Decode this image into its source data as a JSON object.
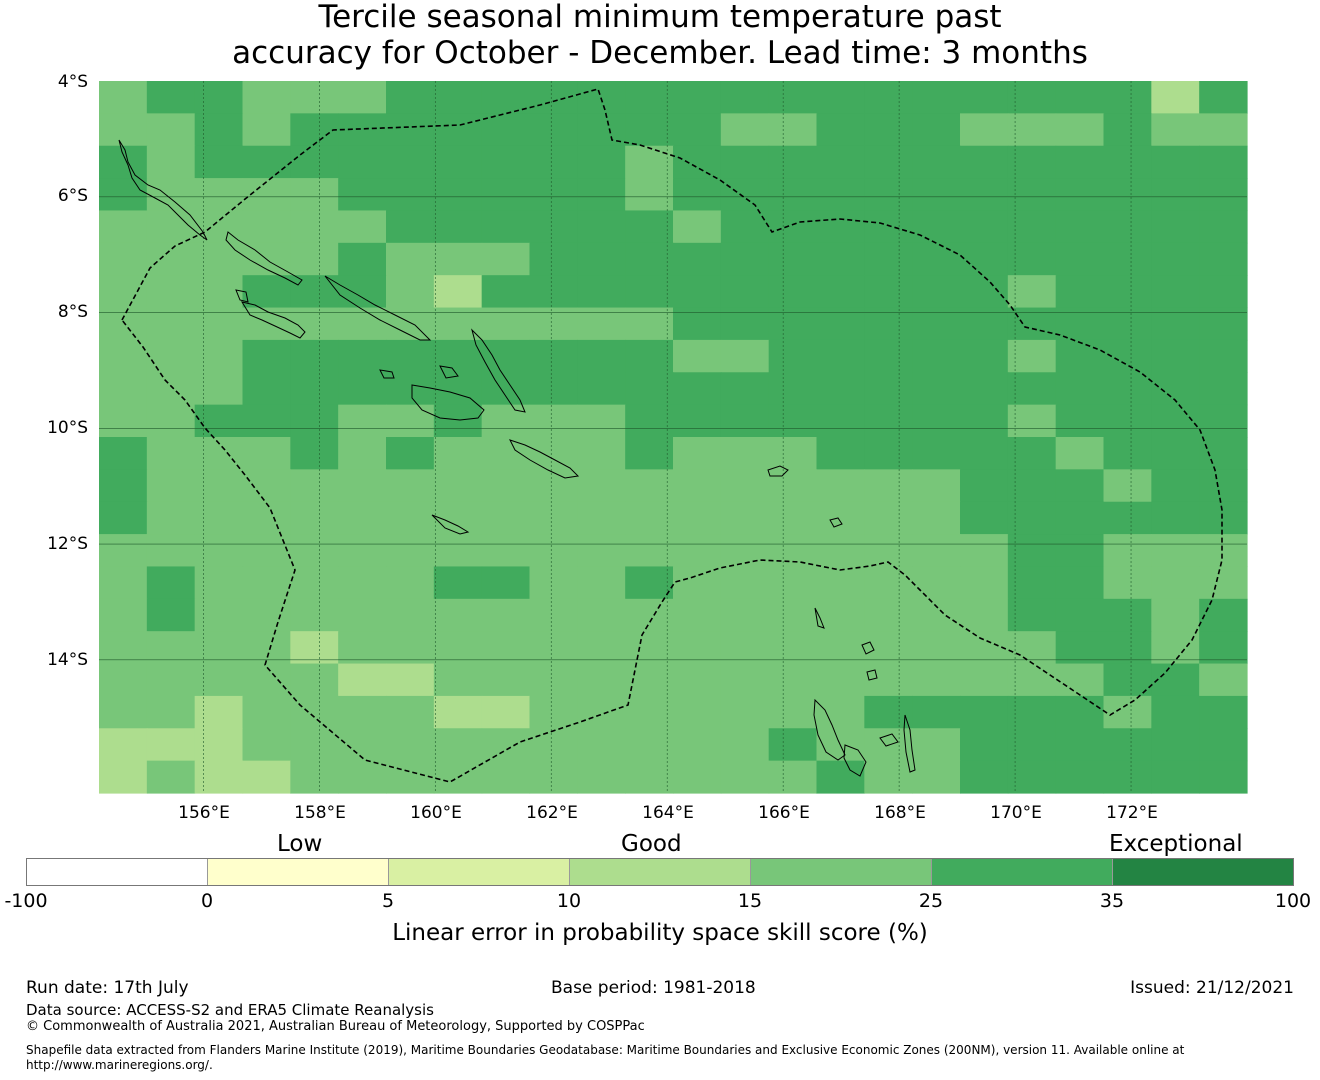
{
  "title_line1": "Tercile seasonal minimum temperature past",
  "title_line2": "accuracy for October - December. Lead time: 3 months",
  "map": {
    "lat_labels": [
      "4°S",
      "6°S",
      "8°S",
      "10°S",
      "12°S",
      "14°S"
    ],
    "lon_labels": [
      "156°E",
      "158°E",
      "160°E",
      "162°E",
      "164°E",
      "166°E",
      "168°E",
      "170°E",
      "172°E"
    ],
    "lat_range": [
      -16.3,
      -4.0
    ],
    "lon_range": [
      154.2,
      174.0
    ],
    "gridlines": true,
    "cell_size_deg": 0.833,
    "grid_values": [
      [
        4,
        5,
        5,
        4,
        4,
        4,
        5,
        5,
        5,
        5,
        5,
        5,
        5,
        5,
        5,
        5,
        5,
        5,
        5,
        5,
        5,
        5,
        3,
        5
      ],
      [
        4,
        4,
        5,
        4,
        5,
        5,
        5,
        5,
        5,
        5,
        5,
        5,
        5,
        4,
        4,
        5,
        5,
        5,
        4,
        4,
        4,
        5,
        4,
        4
      ],
      [
        5,
        4,
        5,
        5,
        5,
        5,
        5,
        5,
        5,
        5,
        5,
        4,
        5,
        5,
        5,
        5,
        5,
        5,
        5,
        5,
        5,
        5,
        5,
        5
      ],
      [
        5,
        4,
        4,
        4,
        4,
        5,
        5,
        5,
        5,
        5,
        5,
        4,
        5,
        5,
        5,
        5,
        5,
        5,
        5,
        5,
        5,
        5,
        5,
        5
      ],
      [
        4,
        4,
        4,
        4,
        4,
        4,
        5,
        5,
        5,
        5,
        5,
        5,
        4,
        5,
        5,
        5,
        5,
        5,
        5,
        5,
        5,
        5,
        5,
        5
      ],
      [
        4,
        4,
        4,
        4,
        4,
        5,
        4,
        4,
        4,
        5,
        5,
        5,
        5,
        5,
        5,
        5,
        5,
        5,
        5,
        5,
        5,
        5,
        5,
        5
      ],
      [
        4,
        4,
        4,
        5,
        5,
        5,
        4,
        3,
        5,
        5,
        5,
        5,
        5,
        5,
        5,
        5,
        5,
        5,
        5,
        4,
        5,
        5,
        5,
        5
      ],
      [
        4,
        4,
        4,
        4,
        4,
        4,
        4,
        4,
        4,
        4,
        4,
        4,
        5,
        5,
        5,
        5,
        5,
        5,
        5,
        5,
        5,
        5,
        5,
        5
      ],
      [
        4,
        4,
        4,
        5,
        5,
        5,
        5,
        5,
        5,
        5,
        5,
        5,
        4,
        4,
        5,
        5,
        5,
        5,
        5,
        4,
        5,
        5,
        5,
        5
      ],
      [
        4,
        4,
        4,
        5,
        5,
        5,
        5,
        5,
        5,
        5,
        5,
        5,
        5,
        5,
        5,
        5,
        5,
        5,
        5,
        5,
        5,
        5,
        5,
        5
      ],
      [
        4,
        4,
        5,
        5,
        5,
        4,
        4,
        5,
        4,
        4,
        4,
        5,
        5,
        5,
        5,
        5,
        5,
        5,
        5,
        4,
        5,
        5,
        5,
        5
      ],
      [
        5,
        4,
        4,
        4,
        5,
        4,
        5,
        4,
        4,
        4,
        4,
        5,
        4,
        4,
        4,
        5,
        5,
        5,
        5,
        5,
        4,
        5,
        5,
        5
      ],
      [
        5,
        4,
        4,
        4,
        4,
        4,
        4,
        4,
        4,
        4,
        4,
        4,
        4,
        4,
        4,
        4,
        4,
        4,
        5,
        5,
        5,
        4,
        5,
        5
      ],
      [
        5,
        4,
        4,
        4,
        4,
        4,
        4,
        4,
        4,
        4,
        4,
        4,
        4,
        4,
        4,
        4,
        4,
        4,
        5,
        5,
        5,
        5,
        5,
        5
      ],
      [
        4,
        4,
        4,
        4,
        4,
        4,
        4,
        4,
        4,
        4,
        4,
        4,
        4,
        4,
        4,
        4,
        4,
        4,
        4,
        5,
        5,
        4,
        4,
        4
      ],
      [
        4,
        5,
        4,
        4,
        4,
        4,
        4,
        5,
        5,
        4,
        4,
        5,
        4,
        4,
        4,
        4,
        4,
        4,
        4,
        5,
        5,
        4,
        4,
        4
      ],
      [
        4,
        5,
        4,
        4,
        4,
        4,
        4,
        4,
        4,
        4,
        4,
        4,
        4,
        4,
        4,
        4,
        4,
        4,
        4,
        5,
        5,
        5,
        4,
        5
      ],
      [
        4,
        4,
        4,
        4,
        3,
        4,
        4,
        4,
        4,
        4,
        4,
        4,
        4,
        4,
        4,
        4,
        4,
        4,
        4,
        4,
        5,
        5,
        4,
        5
      ],
      [
        4,
        4,
        4,
        4,
        4,
        3,
        3,
        4,
        4,
        4,
        4,
        4,
        4,
        4,
        4,
        4,
        4,
        4,
        4,
        4,
        4,
        5,
        5,
        4
      ],
      [
        4,
        4,
        3,
        4,
        4,
        4,
        4,
        3,
        3,
        4,
        4,
        4,
        4,
        4,
        4,
        4,
        5,
        5,
        5,
        5,
        5,
        4,
        5,
        5
      ],
      [
        3,
        3,
        3,
        4,
        4,
        4,
        4,
        4,
        4,
        4,
        4,
        4,
        4,
        4,
        5,
        4,
        4,
        4,
        5,
        5,
        5,
        5,
        5,
        5
      ],
      [
        3,
        4,
        3,
        3,
        4,
        4,
        4,
        4,
        4,
        4,
        4,
        4,
        4,
        4,
        4,
        5,
        4,
        4,
        5,
        5,
        5,
        5,
        5,
        5
      ]
    ]
  },
  "legend": {
    "category_labels": [
      "Low",
      "Good",
      "Exceptional"
    ],
    "bins": [
      "-100",
      "0",
      "5",
      "10",
      "15",
      "25",
      "35",
      "100"
    ],
    "colors": [
      "#ffffff",
      "#ffffcc",
      "#d9f0a3",
      "#addd8e",
      "#78c679",
      "#41ab5d",
      "#238443"
    ],
    "label": "Linear error in probability space skill score (%)"
  },
  "footer": {
    "run_date": "Run date: 17th July",
    "base_period": "Base period: 1981-2018",
    "issued": "Issued: 21/12/2021",
    "data_source": "Data source: ACCESS-S2 and ERA5 Climate Reanalysis",
    "copyright": "© Commonwealth of Australia 2021, Australian Bureau of Meteorology, Supported by COSPPac",
    "shapefile_line1": "Shapefile data extracted from Flanders Marine Institute (2019), Maritime Boundaries Geodatabase: Maritime Boundaries and Exclusive Economic Zones (200NM), version 11. Available online at",
    "shapefile_line2": "http://www.marineregions.org/."
  }
}
